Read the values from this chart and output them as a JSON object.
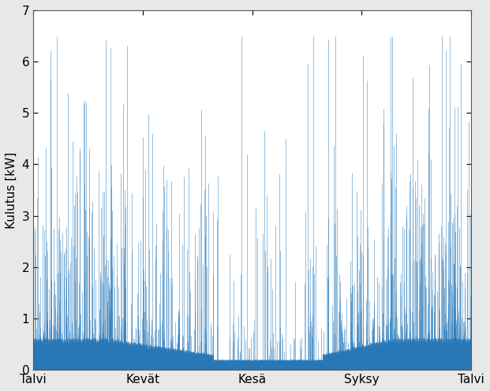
{
  "ylabel": "Kulutus [kW]",
  "xtick_labels": [
    "Talvi",
    "Kevät",
    "Kesä",
    "Syksy",
    "Talvi"
  ],
  "ylim": [
    0,
    7
  ],
  "yticks": [
    0,
    1,
    2,
    3,
    4,
    5,
    6,
    7
  ],
  "line_color": "#2878b8",
  "background_color": "#e8e8e8",
  "plot_bg_color": "#ffffff",
  "n_points": 8760,
  "peak_power": 6.5,
  "seed": 42
}
